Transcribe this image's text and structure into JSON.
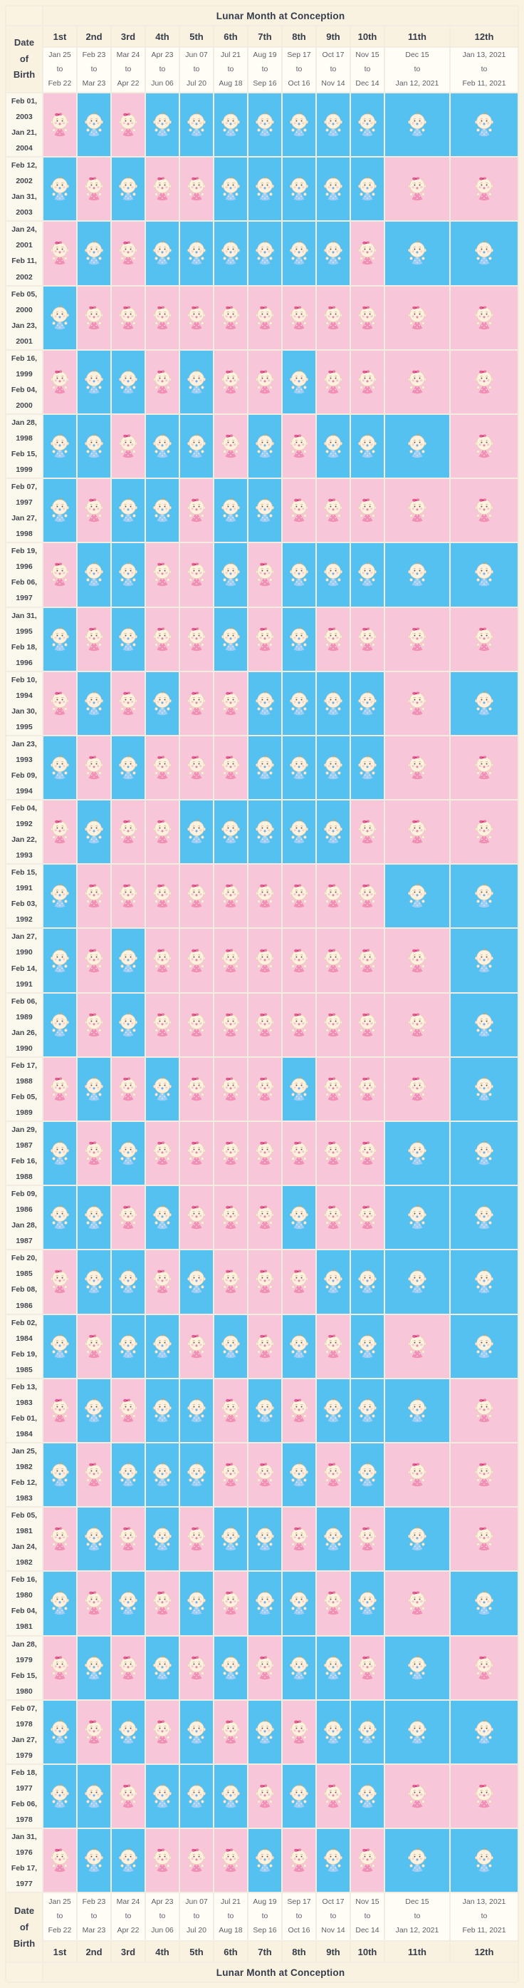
{
  "chart_data": {
    "type": "heatmap",
    "title": "Lunar Month at Conception",
    "row_axis_label_lines": [
      "Date",
      "of",
      "Birth"
    ],
    "range_separator": "to",
    "legend": {
      "G": "girl",
      "B": "boy"
    },
    "columns": [
      {
        "ordinal": "1st",
        "from": "Jan 25",
        "to": "Feb 22"
      },
      {
        "ordinal": "2nd",
        "from": "Feb 23",
        "to": "Mar 23"
      },
      {
        "ordinal": "3rd",
        "from": "Mar 24",
        "to": "Apr 22"
      },
      {
        "ordinal": "4th",
        "from": "Apr 23",
        "to": "Jun 06"
      },
      {
        "ordinal": "5th",
        "from": "Jun 07",
        "to": "Jul 20"
      },
      {
        "ordinal": "6th",
        "from": "Jul 21",
        "to": "Aug 18"
      },
      {
        "ordinal": "7th",
        "from": "Aug 19",
        "to": "Sep 16"
      },
      {
        "ordinal": "8th",
        "from": "Sep 17",
        "to": "Oct 16"
      },
      {
        "ordinal": "9th",
        "from": "Oct 17",
        "to": "Nov 14"
      },
      {
        "ordinal": "10th",
        "from": "Nov 15",
        "to": "Dec 14"
      },
      {
        "ordinal": "11th",
        "from": "Dec 15",
        "to": "Jan 12, 2021"
      },
      {
        "ordinal": "12th",
        "from": "Jan 13, 2021",
        "to": "Feb 11, 2021"
      }
    ],
    "rows": [
      {
        "from": "Feb 01, 2003",
        "to": "Jan 21, 2004",
        "genders": [
          "G",
          "B",
          "G",
          "B",
          "B",
          "B",
          "B",
          "B",
          "B",
          "B",
          "B",
          "B"
        ]
      },
      {
        "from": "Feb 12, 2002",
        "to": "Jan 31, 2003",
        "genders": [
          "B",
          "G",
          "B",
          "G",
          "G",
          "B",
          "B",
          "B",
          "B",
          "B",
          "G",
          "G"
        ]
      },
      {
        "from": "Jan 24, 2001",
        "to": "Feb 11, 2002",
        "genders": [
          "G",
          "B",
          "G",
          "B",
          "B",
          "B",
          "B",
          "B",
          "B",
          "G",
          "B",
          "B"
        ]
      },
      {
        "from": "Feb 05, 2000",
        "to": "Jan 23, 2001",
        "genders": [
          "B",
          "G",
          "G",
          "G",
          "G",
          "G",
          "G",
          "G",
          "G",
          "G",
          "G",
          "G"
        ]
      },
      {
        "from": "Feb 16, 1999",
        "to": "Feb 04, 2000",
        "genders": [
          "G",
          "B",
          "B",
          "G",
          "B",
          "G",
          "G",
          "B",
          "G",
          "G",
          "G",
          "G"
        ]
      },
      {
        "from": "Jan 28, 1998",
        "to": "Feb 15, 1999",
        "genders": [
          "B",
          "B",
          "G",
          "B",
          "B",
          "G",
          "B",
          "G",
          "B",
          "B",
          "B",
          "G"
        ]
      },
      {
        "from": "Feb 07, 1997",
        "to": "Jan 27, 1998",
        "genders": [
          "B",
          "G",
          "B",
          "B",
          "G",
          "B",
          "B",
          "G",
          "G",
          "G",
          "G",
          "G"
        ]
      },
      {
        "from": "Feb 19, 1996",
        "to": "Feb 06, 1997",
        "genders": [
          "G",
          "B",
          "B",
          "G",
          "G",
          "B",
          "G",
          "B",
          "B",
          "B",
          "B",
          "B"
        ]
      },
      {
        "from": "Jan 31, 1995",
        "to": "Feb 18, 1996",
        "genders": [
          "B",
          "G",
          "B",
          "G",
          "G",
          "B",
          "G",
          "B",
          "G",
          "G",
          "G",
          "G"
        ]
      },
      {
        "from": "Feb 10, 1994",
        "to": "Jan 30, 1995",
        "genders": [
          "G",
          "B",
          "G",
          "B",
          "G",
          "G",
          "B",
          "B",
          "B",
          "B",
          "G",
          "B"
        ]
      },
      {
        "from": "Jan 23, 1993",
        "to": "Feb 09, 1994",
        "genders": [
          "B",
          "G",
          "B",
          "G",
          "G",
          "G",
          "B",
          "B",
          "B",
          "B",
          "G",
          "G"
        ]
      },
      {
        "from": "Feb 04, 1992",
        "to": "Jan 22, 1993",
        "genders": [
          "G",
          "B",
          "G",
          "G",
          "B",
          "B",
          "B",
          "B",
          "B",
          "G",
          "G",
          "G"
        ]
      },
      {
        "from": "Feb 15, 1991",
        "to": "Feb 03, 1992",
        "genders": [
          "B",
          "G",
          "G",
          "G",
          "G",
          "G",
          "G",
          "G",
          "G",
          "G",
          "B",
          "B"
        ]
      },
      {
        "from": "Jan 27, 1990",
        "to": "Feb 14, 1991",
        "genders": [
          "B",
          "G",
          "B",
          "G",
          "G",
          "G",
          "G",
          "G",
          "G",
          "G",
          "G",
          "B"
        ]
      },
      {
        "from": "Feb 06, 1989",
        "to": "Jan 26, 1990",
        "genders": [
          "B",
          "G",
          "B",
          "G",
          "G",
          "G",
          "G",
          "G",
          "G",
          "G",
          "G",
          "B"
        ]
      },
      {
        "from": "Feb 17, 1988",
        "to": "Feb 05, 1989",
        "genders": [
          "G",
          "B",
          "G",
          "B",
          "G",
          "G",
          "G",
          "B",
          "G",
          "G",
          "G",
          "B"
        ]
      },
      {
        "from": "Jan 29, 1987",
        "to": "Feb 16, 1988",
        "genders": [
          "B",
          "G",
          "B",
          "G",
          "G",
          "G",
          "G",
          "G",
          "G",
          "G",
          "B",
          "B"
        ]
      },
      {
        "from": "Feb 09, 1986",
        "to": "Jan 28, 1987",
        "genders": [
          "B",
          "B",
          "G",
          "B",
          "G",
          "G",
          "G",
          "B",
          "G",
          "G",
          "B",
          "B"
        ]
      },
      {
        "from": "Feb 20, 1985",
        "to": "Feb 08, 1986",
        "genders": [
          "G",
          "B",
          "B",
          "G",
          "B",
          "G",
          "G",
          "G",
          "B",
          "B",
          "B",
          "B"
        ]
      },
      {
        "from": "Feb 02, 1984",
        "to": "Feb 19, 1985",
        "genders": [
          "B",
          "G",
          "B",
          "B",
          "G",
          "B",
          "G",
          "B",
          "G",
          "B",
          "G",
          "B"
        ]
      },
      {
        "from": "Feb 13, 1983",
        "to": "Feb 01, 1984",
        "genders": [
          "G",
          "B",
          "G",
          "B",
          "B",
          "G",
          "B",
          "G",
          "B",
          "B",
          "B",
          "G"
        ]
      },
      {
        "from": "Jan 25, 1982",
        "to": "Feb 12, 1983",
        "genders": [
          "B",
          "G",
          "B",
          "B",
          "B",
          "G",
          "G",
          "B",
          "G",
          "B",
          "G",
          "G"
        ]
      },
      {
        "from": "Feb 05, 1981",
        "to": "Jan 24, 1982",
        "genders": [
          "G",
          "B",
          "G",
          "B",
          "G",
          "B",
          "B",
          "G",
          "B",
          "G",
          "B",
          "G"
        ]
      },
      {
        "from": "Feb 16, 1980",
        "to": "Feb 04, 1981",
        "genders": [
          "B",
          "G",
          "B",
          "G",
          "B",
          "G",
          "B",
          "B",
          "G",
          "B",
          "G",
          "B"
        ]
      },
      {
        "from": "Jan 28, 1979",
        "to": "Feb 15, 1980",
        "genders": [
          "G",
          "B",
          "G",
          "B",
          "G",
          "B",
          "G",
          "B",
          "B",
          "G",
          "B",
          "G"
        ]
      },
      {
        "from": "Feb 07, 1978",
        "to": "Jan 27, 1979",
        "genders": [
          "B",
          "G",
          "B",
          "G",
          "B",
          "G",
          "B",
          "G",
          "B",
          "B",
          "B",
          "B"
        ]
      },
      {
        "from": "Feb 18, 1977",
        "to": "Feb 06, 1978",
        "genders": [
          "B",
          "B",
          "G",
          "B",
          "B",
          "B",
          "G",
          "B",
          "G",
          "B",
          "G",
          "G"
        ]
      },
      {
        "from": "Jan 31, 1976",
        "to": "Feb 17, 1977",
        "genders": [
          "G",
          "B",
          "B",
          "G",
          "G",
          "G",
          "B",
          "G",
          "B",
          "G",
          "B",
          "B"
        ]
      }
    ]
  },
  "colors": {
    "girl_cell": "#f7c7d9",
    "boy_cell": "#54c1f1",
    "header_bg": "#faf2e1",
    "page_bg": "#fbf3e2",
    "range_cell_bg": "#fffdf6",
    "title_text": "#343b4a"
  }
}
